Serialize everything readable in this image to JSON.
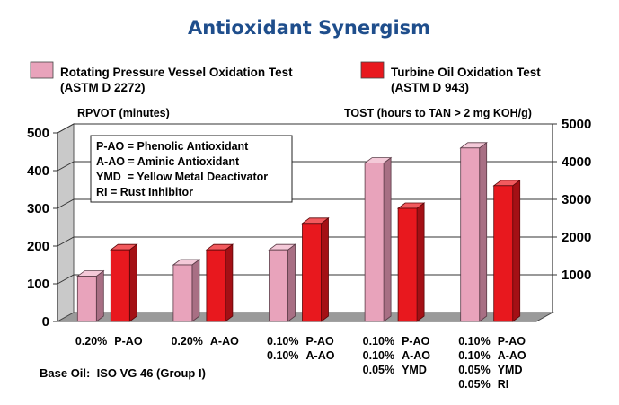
{
  "chart_data": {
    "type": "bar",
    "title": "Antioxidant Synergism",
    "legend": {
      "placement": "top",
      "entries": [
        {
          "line1": "Rotating Pressure Vessel Oxidation Test",
          "line2": "(ASTM D 2272)",
          "color": "#e8a3bb"
        },
        {
          "line1": "Turbine Oil Oxidation Test",
          "line2": "(ASTM D 943)",
          "color": "#e8181e"
        }
      ]
    },
    "ylabel_left": "RPVOT (minutes)",
    "ylabel_right": "TOST (hours to TAN > 2 mg KOH/g)",
    "ylim_left": [
      0,
      500
    ],
    "ylim_right": [
      0,
      5000
    ],
    "yticks_left": [
      "0",
      "100",
      "200",
      "300",
      "400",
      "500"
    ],
    "yticks_right": [
      "1000",
      "2000",
      "3000",
      "4000",
      "5000"
    ],
    "grid": true,
    "categories": [
      [
        {
          "pct": "0.20%",
          "name": "P-AO"
        }
      ],
      [
        {
          "pct": "0.20%",
          "name": "A-AO"
        }
      ],
      [
        {
          "pct": "0.10%",
          "name": "P-AO"
        },
        {
          "pct": "0.10%",
          "name": "A-AO"
        }
      ],
      [
        {
          "pct": "0.10%",
          "name": "P-AO"
        },
        {
          "pct": "0.10%",
          "name": "A-AO"
        },
        {
          "pct": "0.05%",
          "name": "YMD"
        }
      ],
      [
        {
          "pct": "0.10%",
          "name": "P-AO"
        },
        {
          "pct": "0.10%",
          "name": "A-AO"
        },
        {
          "pct": "0.05%",
          "name": "YMD"
        },
        {
          "pct": "0.05%",
          "name": "RI"
        }
      ]
    ],
    "series": [
      {
        "name": "Rotating Pressure Vessel Oxidation Test",
        "axis": "left",
        "values": [
          120,
          150,
          190,
          420,
          460
        ]
      },
      {
        "name": "Turbine Oil Oxidation Test",
        "axis": "right",
        "values": [
          1900,
          1900,
          2600,
          3000,
          3600
        ]
      }
    ],
    "annotations": [
      "P-AO = Phenolic Antioxidant",
      "A-AO = Aminic Antioxidant",
      "YMD  = Yellow Metal Deactivator",
      "RI = Rust Inhibitor"
    ],
    "footnote": "Base Oil:  ISO VG 46 (Group I)"
  }
}
